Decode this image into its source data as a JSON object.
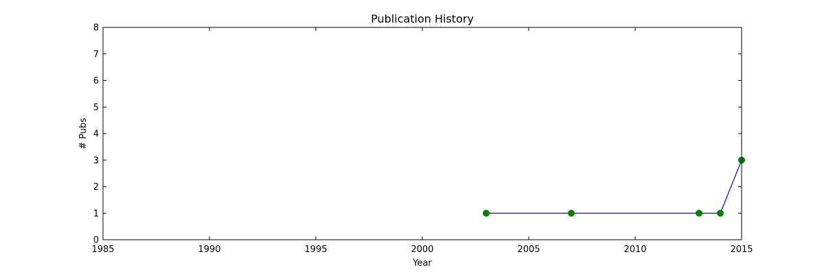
{
  "chart_data": {
    "type": "line",
    "title": "Publication History",
    "xlabel": "Year",
    "ylabel": "# Pubs",
    "xlim": [
      1985,
      2015
    ],
    "ylim": [
      0,
      8
    ],
    "xticks": [
      1985,
      1990,
      1995,
      2000,
      2005,
      2010,
      2015
    ],
    "yticks": [
      0,
      1,
      2,
      3,
      4,
      5,
      6,
      7,
      8
    ],
    "grid": false,
    "series": [
      {
        "x": [
          2003,
          2007,
          2013,
          2014,
          2015
        ],
        "y": [
          1,
          1,
          1,
          1,
          3
        ],
        "line_color": "#0000ff",
        "marker_color": "#008000",
        "marker": "circle"
      }
    ]
  }
}
